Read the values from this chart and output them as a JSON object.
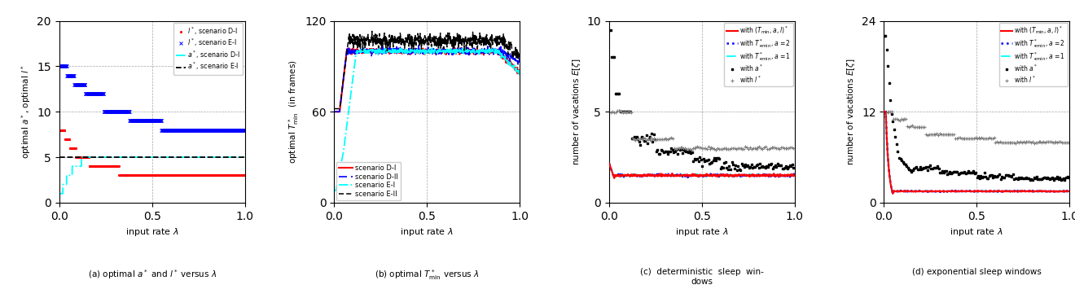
{
  "fig_width": 13.2,
  "fig_height": 3.66,
  "dpi": 100,
  "subplot_a": {
    "ylim": [
      0,
      20
    ],
    "xlim": [
      0,
      1
    ],
    "yticks": [
      0,
      5,
      10,
      15,
      20
    ],
    "xticks": [
      0,
      0.5,
      1
    ],
    "ylabel": "optimal $a^*$, optimal $l^*$",
    "xlabel": "input rate $\\lambda$",
    "caption": "(a) optimal $a^*$ and $l^*$ versus $\\lambda$"
  },
  "subplot_b": {
    "ylim": [
      0,
      120
    ],
    "xlim": [
      0,
      1
    ],
    "yticks": [
      0,
      60,
      120
    ],
    "xticks": [
      0,
      0.5,
      1
    ],
    "ylabel": "optimal $T^*_{\\mathrm{min}}$  (in frames)",
    "xlabel": "input rate $\\lambda$",
    "caption": "(b) optimal $T^*_{\\min}$ versus $\\lambda$"
  },
  "subplot_c": {
    "ylim": [
      0,
      10
    ],
    "xlim": [
      0,
      1
    ],
    "yticks": [
      0,
      5,
      10
    ],
    "xticks": [
      0,
      0.5,
      1
    ],
    "ylabel": "number of vacations $E[\\zeta]$",
    "xlabel": "input rate $\\lambda$",
    "caption": "(c) deterministic sleep win-\ndows"
  },
  "subplot_d": {
    "ylim": [
      0,
      24
    ],
    "xlim": [
      0,
      1
    ],
    "yticks": [
      0,
      12,
      24
    ],
    "xticks": [
      0,
      0.5,
      1
    ],
    "ylabel": "number of vacations $E[\\zeta]$",
    "xlabel": "input rate $\\lambda$",
    "caption": "(d) exponential sleep windows"
  }
}
